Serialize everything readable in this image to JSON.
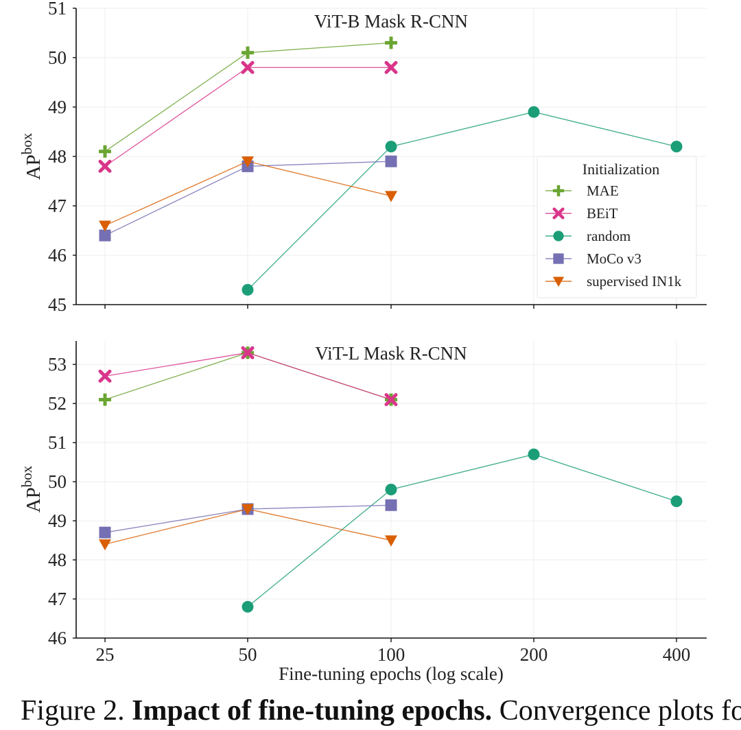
{
  "chart_data": [
    {
      "type": "line",
      "title": "ViT-B Mask R-CNN",
      "xlabel": "",
      "ylabel": "AP",
      "ylabel_sup": "box",
      "x_scale": "log",
      "x_ticks": [
        25,
        50,
        100,
        200,
        400
      ],
      "x_tick_labels": [
        "25",
        "50",
        "100",
        "200",
        "400"
      ],
      "ylim": [
        45,
        51
      ],
      "y_ticks": [
        45,
        46,
        47,
        48,
        49,
        50,
        51
      ],
      "y_tick_labels": [
        "45",
        "46",
        "47",
        "48",
        "49",
        "50",
        "51"
      ],
      "grid": true,
      "legend": {
        "title": "Initialization",
        "position": "right",
        "entries": [
          "MAE",
          "BEiT",
          "random",
          "MoCo v3",
          "supervised IN1k"
        ]
      },
      "series": [
        {
          "name": "MAE",
          "marker": "plus",
          "color": "#6aa533",
          "x": [
            25,
            50,
            100
          ],
          "values": [
            48.1,
            50.1,
            50.3
          ]
        },
        {
          "name": "BEiT",
          "marker": "x",
          "color": "#d9358a",
          "x": [
            25,
            50,
            100
          ],
          "values": [
            47.8,
            49.8,
            49.8
          ]
        },
        {
          "name": "random",
          "marker": "circle",
          "color": "#1b9e77",
          "x": [
            50,
            100,
            200,
            400
          ],
          "values": [
            45.3,
            48.2,
            48.9,
            48.2
          ]
        },
        {
          "name": "MoCo v3",
          "marker": "square",
          "color": "#7570b3",
          "x": [
            25,
            50,
            100
          ],
          "values": [
            46.4,
            47.8,
            47.9
          ]
        },
        {
          "name": "supervised IN1k",
          "marker": "triangle-down",
          "color": "#d95f02",
          "x": [
            25,
            50,
            100
          ],
          "values": [
            46.6,
            47.9,
            47.2
          ]
        }
      ]
    },
    {
      "type": "line",
      "title": "ViT-L Mask R-CNN",
      "xlabel": "Fine-tuning epochs (log scale)",
      "ylabel": "AP",
      "ylabel_sup": "box",
      "x_scale": "log",
      "x_ticks": [
        25,
        50,
        100,
        200,
        400
      ],
      "x_tick_labels": [
        "25",
        "50",
        "100",
        "200",
        "400"
      ],
      "ylim": [
        46,
        53.6
      ],
      "y_ticks": [
        46,
        47,
        48,
        49,
        50,
        51,
        52,
        53
      ],
      "y_tick_labels": [
        "46",
        "47",
        "48",
        "49",
        "50",
        "51",
        "52",
        "53"
      ],
      "grid": true,
      "legend": null,
      "series": [
        {
          "name": "MAE",
          "marker": "plus",
          "color": "#6aa533",
          "x": [
            25,
            50,
            100
          ],
          "values": [
            52.1,
            53.3,
            52.1
          ]
        },
        {
          "name": "BEiT",
          "marker": "x",
          "color": "#d9358a",
          "x": [
            25,
            50,
            100
          ],
          "values": [
            52.7,
            53.3,
            52.1
          ]
        },
        {
          "name": "random",
          "marker": "circle",
          "color": "#1b9e77",
          "x": [
            50,
            100,
            200,
            400
          ],
          "values": [
            46.8,
            49.8,
            50.7,
            49.5
          ]
        },
        {
          "name": "MoCo v3",
          "marker": "square",
          "color": "#7570b3",
          "x": [
            25,
            50,
            100
          ],
          "values": [
            48.7,
            49.3,
            49.4
          ]
        },
        {
          "name": "supervised IN1k",
          "marker": "triangle-down",
          "color": "#d95f02",
          "x": [
            25,
            50,
            100
          ],
          "values": [
            48.4,
            49.3,
            48.5
          ]
        }
      ]
    }
  ],
  "caption": {
    "label": "Figure 2.",
    "bold": "Impact of fine-tuning epochs.",
    "rest": "Convergence plots for"
  }
}
